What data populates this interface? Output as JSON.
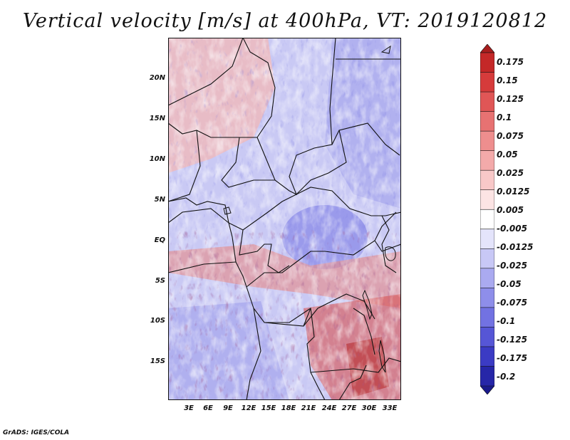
{
  "title": "Vertical velocity [m/s] at 400hPa, VT: 2019120812",
  "footer": "GrADS: IGES/COLA",
  "y_axis_labels": [
    "20N",
    "15N",
    "10N",
    "5N",
    "EQ",
    "5S",
    "10S",
    "15S"
  ],
  "x_axis_labels": [
    "3E",
    "6E",
    "9E",
    "12E",
    "15E",
    "18E",
    "21E",
    "24E",
    "27E",
    "30E",
    "33E"
  ],
  "colorbar": {
    "levels": [
      "0.175",
      "0.15",
      "0.125",
      "0.1",
      "0.075",
      "0.05",
      "0.025",
      "0.0125",
      "0.005",
      "-0.005",
      "-0.0125",
      "-0.025",
      "-0.05",
      "-0.075",
      "-0.1",
      "-0.125",
      "-0.175",
      "-0.2"
    ],
    "colors": [
      "#a81d1d",
      "#c42828",
      "#d63b3b",
      "#e05656",
      "#e77272",
      "#ee8e8e",
      "#f3aaaa",
      "#f8c8c8",
      "#fce4e4",
      "#ffffff",
      "#e4e4fb",
      "#c8c8f6",
      "#aaaaf0",
      "#8e8eea",
      "#7272e2",
      "#5656d6",
      "#3b3bc4",
      "#2626a8",
      "#1a1a8c"
    ]
  }
}
